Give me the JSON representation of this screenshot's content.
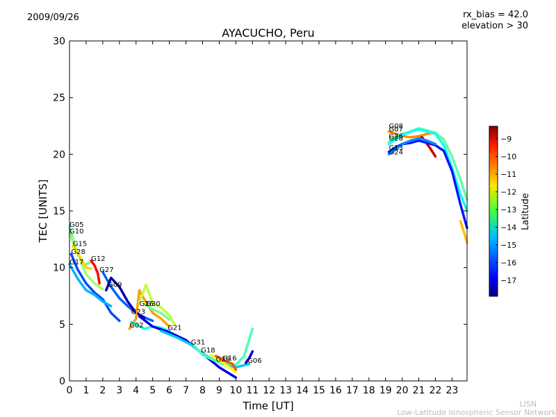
{
  "header": {
    "date": "2009/09/26",
    "rx_bias": "rx_bias = 42.0",
    "elevation": "elevation > 30"
  },
  "footer": {
    "line1": "LISN",
    "line2": "Low-Latitude Ionospheric Sensor Network"
  },
  "chart_data": {
    "type": "line",
    "title": "AYACUCHO, Peru",
    "xlabel": "Time [UT]",
    "ylabel": "TEC [UNITS]",
    "xlim": [
      0,
      23.9
    ],
    "ylim": [
      0,
      30
    ],
    "xticks": [
      0,
      1,
      2,
      3,
      4,
      5,
      6,
      7,
      8,
      9,
      10,
      11,
      12,
      13,
      14,
      15,
      16,
      17,
      18,
      19,
      20,
      21,
      22,
      23
    ],
    "yticks": [
      0,
      5,
      10,
      15,
      20,
      25,
      30
    ],
    "grid": false,
    "colorbar": {
      "label": "Latitude",
      "range": [
        -17.9,
        -8.3
      ],
      "ticks": [
        -17,
        -16,
        -15,
        -14,
        -13,
        -12,
        -11,
        -10,
        -9
      ]
    },
    "series": [
      {
        "name": "G05",
        "lat": -13.5,
        "x": [
          0.0,
          0.4,
          0.8,
          1.2
        ],
        "y": [
          13.6,
          11.5,
          10.2,
          10.4
        ]
      },
      {
        "name": "G10",
        "lat": -12.8,
        "x": [
          0.0,
          0.5,
          1.0,
          1.5,
          2.0
        ],
        "y": [
          13.0,
          11.3,
          9.4,
          8.6,
          8.1
        ]
      },
      {
        "name": "G15",
        "lat": -11.5,
        "x": [
          0.2,
          0.6,
          1.0,
          1.3
        ],
        "y": [
          11.9,
          11.0,
          10.0,
          9.9
        ]
      },
      {
        "name": "G28",
        "lat": -16.0,
        "x": [
          0.1,
          0.5,
          1.0,
          1.5,
          2.0,
          2.5,
          3.0
        ],
        "y": [
          11.2,
          9.8,
          8.6,
          7.8,
          7.2,
          6.0,
          5.3
        ]
      },
      {
        "name": "G17",
        "lat": -15.0,
        "x": [
          0.0,
          0.5,
          1.0,
          1.5,
          2.0,
          2.5
        ],
        "y": [
          10.3,
          9.0,
          8.0,
          7.6,
          7.0,
          6.6
        ]
      },
      {
        "name": "G12",
        "lat": -9.5,
        "x": [
          1.3,
          1.5,
          1.7,
          1.8
        ],
        "y": [
          10.6,
          10.2,
          9.5,
          8.6
        ]
      },
      {
        "name": "G27",
        "lat": -15.8,
        "x": [
          2.0,
          2.5,
          3.0,
          3.5,
          4.0,
          4.5,
          5.0
        ],
        "y": [
          9.6,
          8.3,
          7.3,
          6.6,
          6.0,
          5.6,
          5.3
        ]
      },
      {
        "name": "G09",
        "lat": -17.5,
        "x": [
          2.2,
          2.5,
          3.0,
          3.5,
          4.0,
          4.5
        ],
        "y": [
          8.0,
          9.1,
          8.3,
          7.0,
          6.0,
          5.6
        ]
      },
      {
        "name": "G23",
        "lat": -11.0,
        "x": [
          3.6,
          4.0,
          4.2,
          4.5,
          5.0,
          5.5,
          6.0
        ],
        "y": [
          4.6,
          5.5,
          8.0,
          7.2,
          6.0,
          5.5,
          4.8
        ]
      },
      {
        "name": "G02",
        "lat": -14.0,
        "x": [
          3.7,
          4.0,
          4.5,
          5.0,
          5.5,
          6.0
        ],
        "y": [
          5.2,
          5.0,
          4.6,
          4.8,
          4.7,
          4.4
        ]
      },
      {
        "name": "G26",
        "lat": -12.5,
        "x": [
          4.2,
          4.6,
          5.0,
          5.5,
          6.0,
          6.3
        ],
        "y": [
          6.9,
          8.5,
          6.8,
          6.5,
          5.8,
          5.0
        ]
      },
      {
        "name": "G30",
        "lat": -13.2,
        "x": [
          4.5,
          5.0,
          5.5,
          6.0
        ],
        "y": [
          6.8,
          6.3,
          6.0,
          5.4
        ]
      },
      {
        "name": "G21",
        "lat": -17.0,
        "x": [
          4.2,
          5.0,
          6.0,
          7.0,
          8.0,
          9.0,
          10.0
        ],
        "y": [
          5.7,
          4.8,
          4.3,
          3.6,
          2.4,
          1.2,
          0.3
        ]
      },
      {
        "name": "G31",
        "lat": -14.8,
        "x": [
          5.5,
          6.5,
          7.3,
          8.0,
          9.0,
          10.0,
          10.8
        ],
        "y": [
          4.4,
          3.8,
          3.2,
          2.4,
          1.6,
          1.2,
          1.5
        ]
      },
      {
        "name": "G18",
        "lat": -13.6,
        "x": [
          7.5,
          8.0,
          9.0,
          10.0,
          10.5,
          11.0
        ],
        "y": [
          3.1,
          2.3,
          1.6,
          1.4,
          2.2,
          4.6
        ]
      },
      {
        "name": "G29",
        "lat": -12.0,
        "x": [
          8.5,
          9.0,
          9.5,
          10.0
        ],
        "y": [
          2.3,
          1.8,
          1.3,
          0.8
        ]
      },
      {
        "name": "G16",
        "lat": -10.3,
        "x": [
          8.8,
          9.3,
          9.8,
          10.0
        ],
        "y": [
          2.2,
          1.8,
          1.5,
          1.0
        ]
      },
      {
        "name": "G06",
        "lat": -17.3,
        "x": [
          10.6,
          10.8,
          11.0
        ],
        "y": [
          1.6,
          2.0,
          2.6
        ]
      },
      {
        "name": "G08",
        "lat": -10.8,
        "x": [
          19.2,
          19.6,
          20.0,
          20.5,
          21.0,
          21.5,
          22.0
        ],
        "y": [
          22.0,
          21.8,
          21.6,
          21.5,
          21.6,
          21.8,
          21.9
        ]
      },
      {
        "name": "G07",
        "lat": -9.0,
        "x": [
          20.8,
          21.2,
          21.7,
          22.0
        ],
        "y": [
          21.2,
          21.5,
          20.5,
          19.8
        ]
      },
      {
        "name": "G26",
        "lat": -13.4,
        "x": [
          19.2,
          19.6,
          20.0,
          20.5,
          21.0,
          21.5,
          22.0,
          22.5,
          23.0,
          23.5,
          23.9
        ],
        "y": [
          21.1,
          21.5,
          21.8,
          22.0,
          22.3,
          22.1,
          21.9,
          21.3,
          19.8,
          17.8,
          16.0
        ]
      },
      {
        "name": "G28",
        "lat": -14.2,
        "x": [
          19.2,
          19.6,
          20.0,
          20.5,
          21.0,
          21.5,
          22.0,
          22.5,
          23.0,
          23.5,
          23.9
        ],
        "y": [
          20.9,
          21.3,
          21.7,
          22.0,
          22.2,
          22.0,
          21.8,
          20.8,
          18.8,
          16.5,
          15.0
        ]
      },
      {
        "name": "G13",
        "lat": -16.5,
        "x": [
          19.2,
          19.6,
          20.0,
          20.5,
          21.0,
          21.5,
          22.0,
          22.5,
          23.0,
          23.5,
          23.9
        ],
        "y": [
          20.2,
          20.6,
          20.9,
          21.0,
          21.2,
          21.0,
          20.8,
          20.3,
          18.5,
          15.6,
          13.5
        ]
      },
      {
        "name": "G24",
        "lat": -15.4,
        "x": [
          19.2,
          19.6,
          20.0,
          20.5,
          21.0,
          21.5,
          22.0
        ],
        "y": [
          20.0,
          20.4,
          20.9,
          21.2,
          21.4,
          21.2,
          20.9
        ]
      },
      {
        "name": "",
        "lat": -11.3,
        "x": [
          23.5,
          23.7,
          23.9
        ],
        "y": [
          14.1,
          13.2,
          12.2
        ]
      }
    ],
    "label_positions": [
      {
        "text": "G05",
        "x": 0.0,
        "y": 13.6
      },
      {
        "text": "G10",
        "x": 0.0,
        "y": 13.0
      },
      {
        "text": "G15",
        "x": 0.2,
        "y": 11.9
      },
      {
        "text": "G28",
        "x": 0.1,
        "y": 11.2
      },
      {
        "text": "G17",
        "x": 0.0,
        "y": 10.3
      },
      {
        "text": "G12",
        "x": 1.3,
        "y": 10.6
      },
      {
        "text": "G27",
        "x": 1.8,
        "y": 9.6
      },
      {
        "text": "G09",
        "x": 2.3,
        "y": 8.3
      },
      {
        "text": "G26",
        "x": 4.2,
        "y": 6.6
      },
      {
        "text": "G30",
        "x": 4.6,
        "y": 6.6
      },
      {
        "text": "G23",
        "x": 3.7,
        "y": 5.9
      },
      {
        "text": "G02",
        "x": 3.6,
        "y": 4.7
      },
      {
        "text": "G21",
        "x": 5.9,
        "y": 4.5
      },
      {
        "text": "G31",
        "x": 7.3,
        "y": 3.2
      },
      {
        "text": "G18",
        "x": 7.9,
        "y": 2.5
      },
      {
        "text": "G29",
        "x": 8.8,
        "y": 1.7
      },
      {
        "text": "G16",
        "x": 9.2,
        "y": 1.8
      },
      {
        "text": "G06",
        "x": 10.7,
        "y": 1.6
      },
      {
        "text": "G08",
        "x": 19.2,
        "y": 22.3
      },
      {
        "text": "G07",
        "x": 19.2,
        "y": 22.0
      },
      {
        "text": "G26",
        "x": 19.2,
        "y": 21.4
      },
      {
        "text": "G28",
        "x": 19.2,
        "y": 21.2
      },
      {
        "text": "G13",
        "x": 19.2,
        "y": 20.4
      },
      {
        "text": "G24",
        "x": 19.2,
        "y": 20.0
      }
    ]
  }
}
